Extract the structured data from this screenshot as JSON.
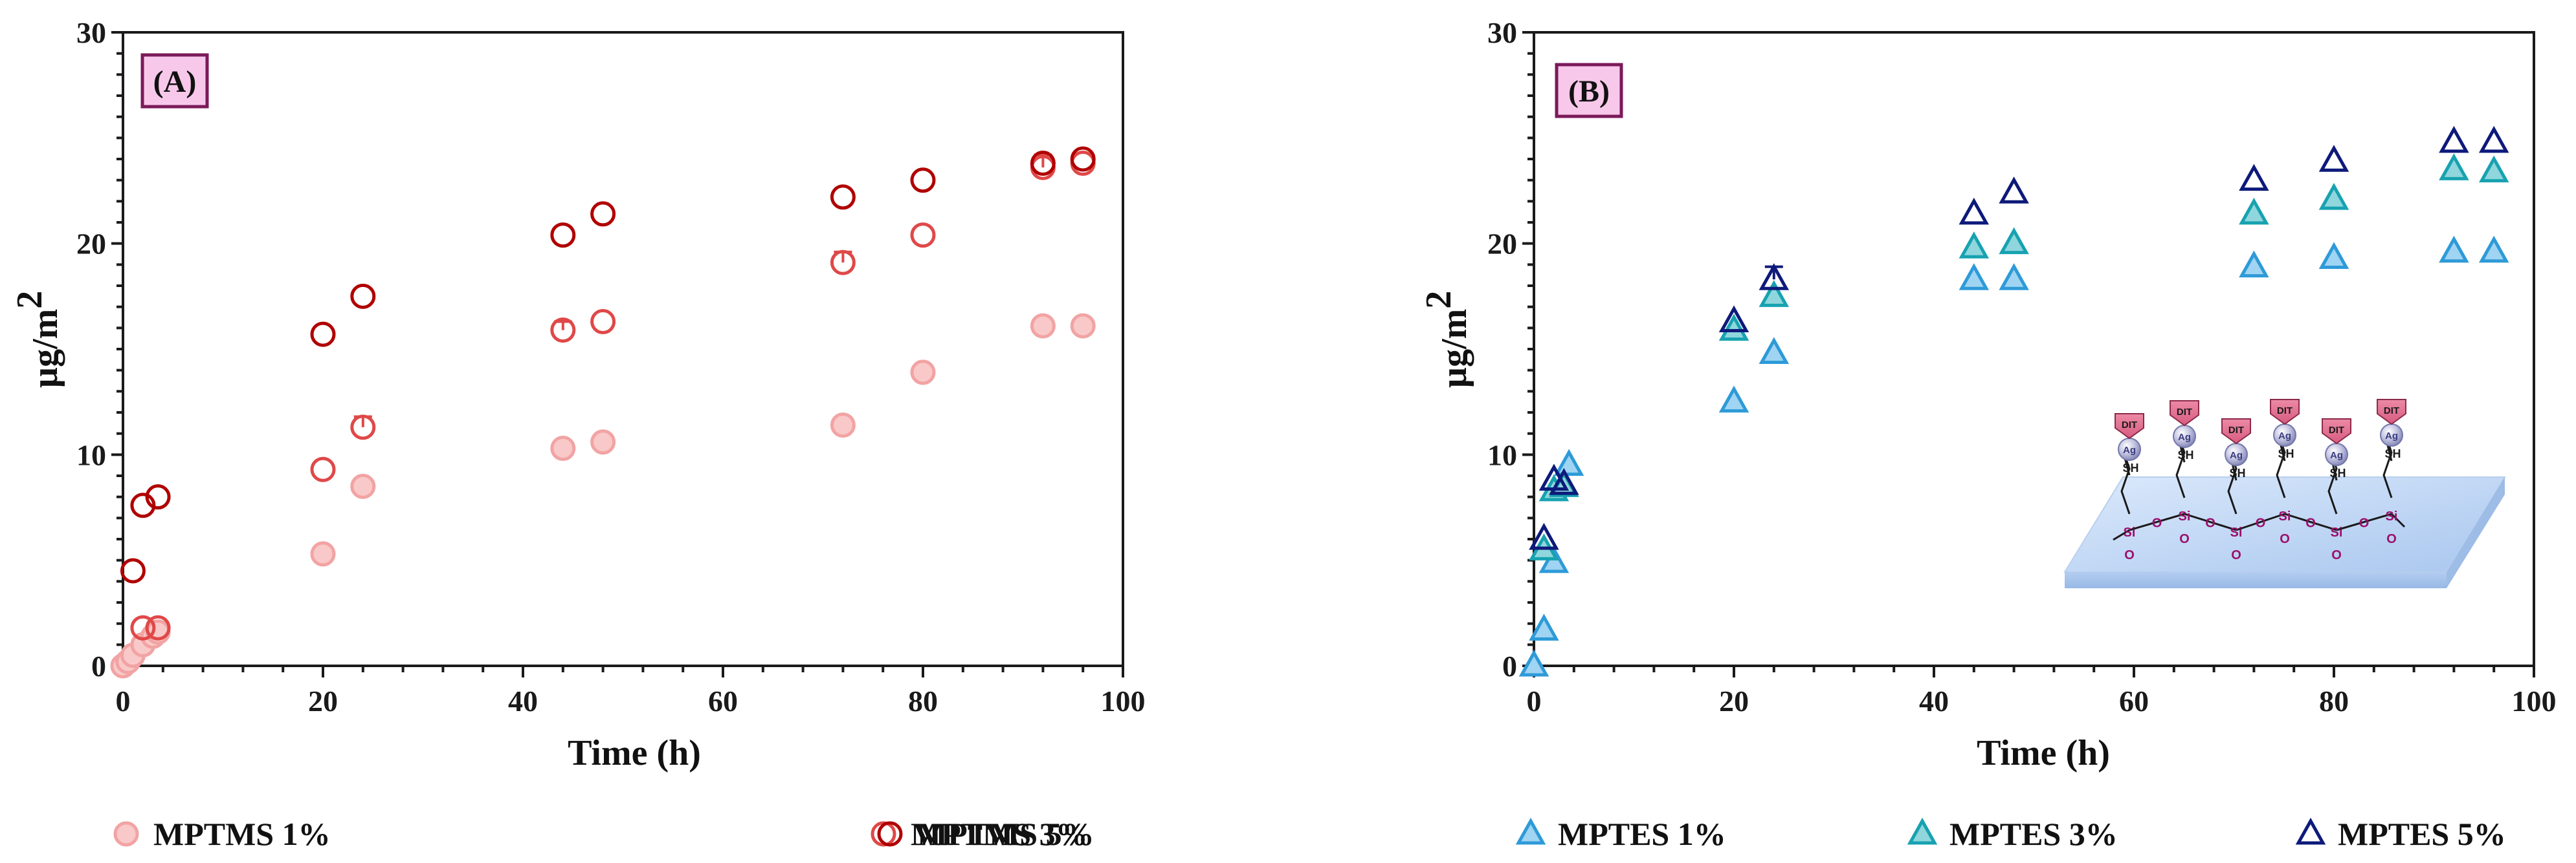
{
  "chart_data": [
    {
      "type": "scatter",
      "panel_label": "(A)",
      "xlabel": "Time (h)",
      "ylabel": "µg/m",
      "ylabel_superscript": "2",
      "xlim": [
        0,
        100
      ],
      "ylim": [
        0,
        30
      ],
      "xticks": [
        0,
        20,
        40,
        60,
        80,
        100
      ],
      "yticks": [
        0,
        10,
        20,
        30
      ],
      "marker": "circle",
      "series": [
        {
          "name": "MPTMS 1%",
          "stroke": "#f2a3a3",
          "fill": "#f9c9c9",
          "x": [
            0,
            0.5,
            1,
            2,
            3,
            3.5,
            20,
            24,
            44,
            48,
            72,
            80,
            92,
            96
          ],
          "y": [
            0,
            0.2,
            0.5,
            1.0,
            1.4,
            1.6,
            5.3,
            8.5,
            10.3,
            10.6,
            11.4,
            13.9,
            16.1,
            16.1
          ]
        },
        {
          "name": "MPTMS 3%",
          "stroke": "#e04848",
          "fill": "none",
          "x": [
            2,
            3.5,
            20,
            24,
            44,
            48,
            72,
            80,
            92,
            96
          ],
          "y": [
            1.8,
            1.8,
            9.3,
            11.3,
            15.9,
            16.3,
            19.1,
            20.4,
            23.6,
            23.8
          ],
          "err": [
            0,
            0,
            0,
            0.5,
            0.4,
            0,
            0.5,
            0,
            0.6,
            0
          ]
        },
        {
          "name": "MPTMS 5%",
          "stroke": "#b00000",
          "fill": "none",
          "x": [
            1,
            2,
            3.5,
            20,
            24,
            44,
            48,
            72,
            80,
            92,
            96
          ],
          "y": [
            4.5,
            7.6,
            8.0,
            15.7,
            17.5,
            20.4,
            21.4,
            22.2,
            23.0,
            23.8,
            24.0
          ]
        }
      ]
    },
    {
      "type": "scatter",
      "panel_label": "(B)",
      "xlabel": "Time (h)",
      "ylabel": "µg/m",
      "ylabel_superscript": "2",
      "xlim": [
        0,
        100
      ],
      "ylim": [
        0,
        30
      ],
      "xticks": [
        0,
        20,
        40,
        60,
        80,
        100
      ],
      "yticks": [
        0,
        10,
        20,
        30
      ],
      "marker": "triangle",
      "series": [
        {
          "name": "MPTES 1%",
          "stroke": "#2e9ad8",
          "fill": "#9fd4f2",
          "x": [
            0,
            1,
            2,
            3.5,
            20,
            24,
            44,
            48,
            72,
            80,
            92,
            96
          ],
          "y": [
            0,
            1.7,
            4.9,
            9.5,
            12.5,
            14.8,
            18.3,
            18.3,
            18.9,
            19.3,
            19.6,
            19.6
          ]
        },
        {
          "name": "MPTES 3%",
          "stroke": "#17a2b0",
          "fill": "#8fd6dd",
          "x": [
            1,
            2,
            3,
            20,
            24,
            44,
            48,
            72,
            80,
            92,
            96
          ],
          "y": [
            5.5,
            8.3,
            8.5,
            15.9,
            17.5,
            19.8,
            20.0,
            21.4,
            22.1,
            23.5,
            23.4
          ]
        },
        {
          "name": "MPTES 5%",
          "stroke": "#0d1a7a",
          "fill": "none",
          "x": [
            1,
            2,
            3,
            20,
            24,
            44,
            48,
            72,
            80,
            92,
            96
          ],
          "y": [
            6.0,
            8.8,
            8.6,
            16.3,
            18.3,
            21.4,
            22.4,
            23.0,
            23.9,
            24.8,
            24.8
          ],
          "err": [
            0,
            0,
            0,
            0,
            0.6,
            0,
            0,
            0,
            0,
            0,
            0
          ]
        }
      ]
    }
  ],
  "inset": {
    "molecule_labels": [
      "DIT",
      "Ag",
      "SH"
    ],
    "atom_labels": [
      "Si",
      "O"
    ]
  }
}
